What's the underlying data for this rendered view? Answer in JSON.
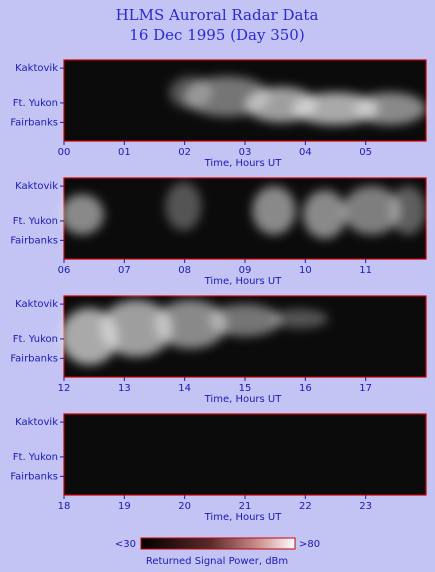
{
  "title": "HLMS Auroral Radar Data",
  "subtitle": "16 Dec 1995 (Day 350)",
  "chart_data": [
    {
      "type": "image",
      "xlabel": "Time, Hours UT",
      "ylabels": [
        "Kaktovik",
        "Ft. Yukon",
        "Fairbanks"
      ],
      "xlim": [
        0,
        6
      ],
      "xticks": [
        {
          "value": 0,
          "label": "00"
        },
        {
          "value": 1,
          "label": "01"
        },
        {
          "value": 2,
          "label": "02"
        },
        {
          "value": 3,
          "label": "03"
        },
        {
          "value": 4,
          "label": "04"
        },
        {
          "value": 5,
          "label": "05"
        }
      ]
    },
    {
      "type": "image",
      "xlabel": "Time, Hours UT",
      "ylabels": [
        "Kaktovik",
        "Ft. Yukon",
        "Fairbanks"
      ],
      "xlim": [
        6,
        12
      ],
      "xticks": [
        {
          "value": 6,
          "label": "06"
        },
        {
          "value": 7,
          "label": "07"
        },
        {
          "value": 8,
          "label": "08"
        },
        {
          "value": 9,
          "label": "09"
        },
        10,
        11
      ]
    },
    {
      "type": "image",
      "xlabel": "Time, Hours UT",
      "ylabels": [
        "Kaktovik",
        "Ft. Yukon",
        "Fairbanks"
      ],
      "xlim": [
        12,
        18
      ],
      "xticks": [
        12,
        13,
        14,
        15,
        16,
        17
      ]
    },
    {
      "type": "image",
      "xlabel": "Time, Hours UT",
      "ylabels": [
        "Kaktovik",
        "Ft. Yukon",
        "Fairbanks"
      ],
      "xlim": [
        18,
        24
      ],
      "xticks": [
        18,
        19,
        20,
        21,
        22,
        23
      ]
    }
  ],
  "colorbar": {
    "label": "Returned Signal Power, dBm",
    "min": {
      "value": 30,
      "label": "<30"
    },
    "max": {
      "value": 80,
      "label": ">80"
    }
  }
}
